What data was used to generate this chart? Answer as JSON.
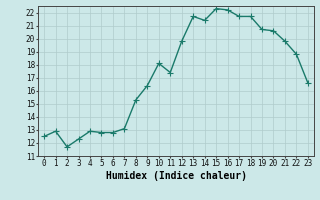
{
  "x": [
    0,
    1,
    2,
    3,
    4,
    5,
    6,
    7,
    8,
    9,
    10,
    11,
    12,
    13,
    14,
    15,
    16,
    17,
    18,
    19,
    20,
    21,
    22,
    23
  ],
  "y": [
    12.5,
    12.9,
    11.7,
    12.3,
    12.9,
    12.8,
    12.8,
    13.1,
    15.3,
    16.4,
    18.1,
    17.4,
    19.8,
    21.7,
    21.4,
    22.3,
    22.2,
    21.7,
    21.7,
    20.7,
    20.6,
    19.8,
    18.8,
    16.6
  ],
  "line_color": "#1a7a6a",
  "marker": "+",
  "marker_size": 4,
  "bg_color": "#cce8e8",
  "grid_color": "#b0cccc",
  "xlabel": "Humidex (Indice chaleur)",
  "xlim": [
    -0.5,
    23.5
  ],
  "ylim": [
    11,
    22.5
  ],
  "yticks": [
    11,
    12,
    13,
    14,
    15,
    16,
    17,
    18,
    19,
    20,
    21,
    22
  ],
  "xticks": [
    0,
    1,
    2,
    3,
    4,
    5,
    6,
    7,
    8,
    9,
    10,
    11,
    12,
    13,
    14,
    15,
    16,
    17,
    18,
    19,
    20,
    21,
    22,
    23
  ],
  "tick_fontsize": 5.5,
  "xlabel_fontsize": 7.0,
  "line_width": 1.0
}
